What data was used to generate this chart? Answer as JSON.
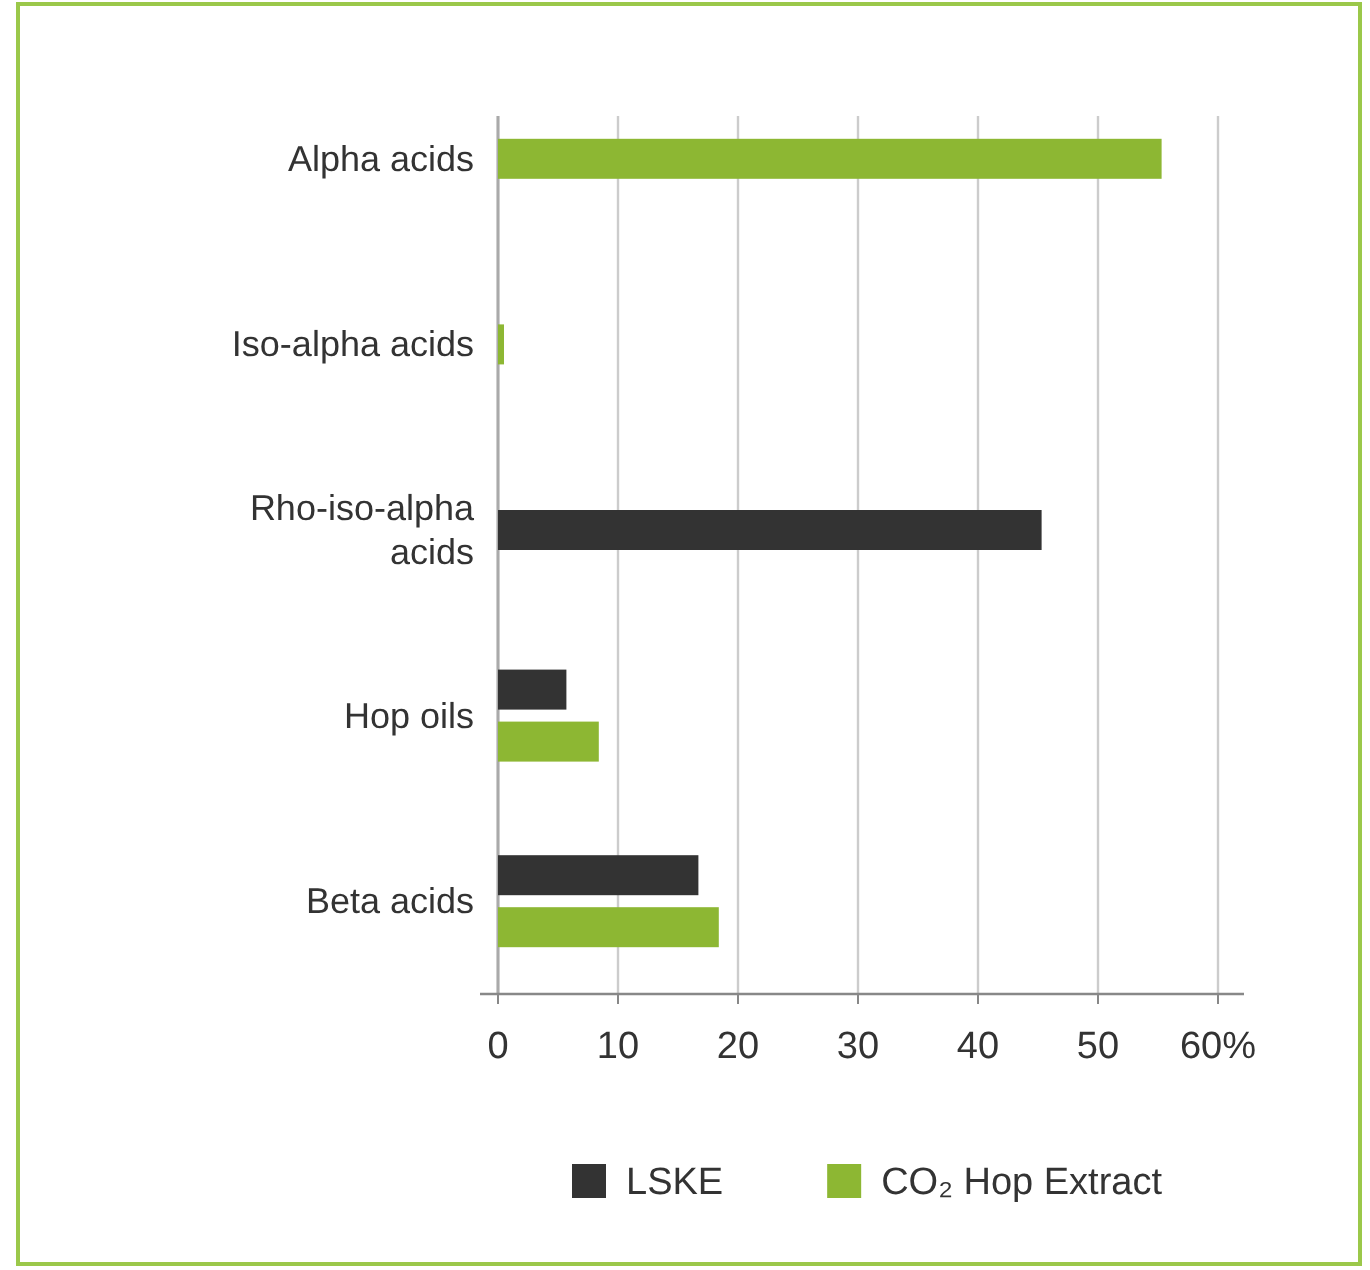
{
  "chart_data": {
    "type": "bar",
    "orientation": "horizontal",
    "categories": [
      "Alpha acids",
      "Iso-alpha acids",
      "Rho-iso-alpha acids",
      "Hop oils",
      "Beta acids"
    ],
    "series": [
      {
        "name": "LSKE",
        "color": "#333333",
        "values": [
          null,
          null,
          45.3,
          5.7,
          16.7
        ]
      },
      {
        "name": "CO₂ Hop Extract",
        "color": "#8db733",
        "values": [
          55.3,
          0.5,
          null,
          8.4,
          18.4
        ]
      }
    ],
    "xlim": [
      0,
      60
    ],
    "xticks": [
      0,
      10,
      20,
      30,
      40,
      50,
      {
        "value": 60,
        "label": "60%"
      }
    ],
    "grid": "x",
    "legend": "bottom"
  }
}
